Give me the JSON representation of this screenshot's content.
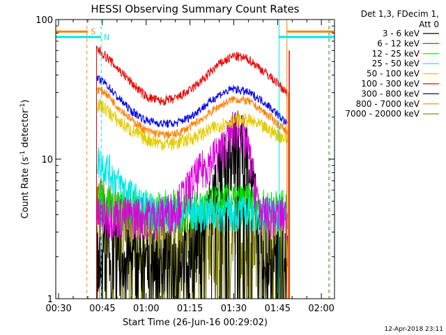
{
  "chart_data": {
    "type": "line",
    "title": "HESSI Observing Summary Count Rates",
    "xlabel": "Start Time (26-Jun-16 00:29:02)",
    "ylabel_main": "Count Rate (s",
    "ylabel_sup1": "-1",
    "ylabel_mid": " detector",
    "ylabel_sup2": "-1",
    "ylabel_end": ")",
    "y_scale": "log",
    "ylim": [
      1,
      100
    ],
    "xlim_minutes": [
      29.03,
      124.5
    ],
    "x_ticks": [
      {
        "t": 30,
        "label": "00:30"
      },
      {
        "t": 45,
        "label": "00:45"
      },
      {
        "t": 60,
        "label": "01:00"
      },
      {
        "t": 75,
        "label": "01:15"
      },
      {
        "t": 90,
        "label": "01:30"
      },
      {
        "t": 105,
        "label": "01:45"
      },
      {
        "t": 120,
        "label": "02:00"
      }
    ],
    "y_ticks": [
      {
        "v": 1,
        "label": "1"
      },
      {
        "v": 10,
        "label": "10"
      },
      {
        "v": 100,
        "label": "100"
      }
    ],
    "legend_header": [
      "Det 1,3, FDecim 1,",
      "Att 0"
    ],
    "series": [
      {
        "name": "3 - 6 keV",
        "color": "#000000",
        "x": [
          40,
          43,
          46,
          50,
          55,
          60,
          65,
          70,
          74,
          78,
          80,
          82,
          84,
          86,
          88,
          90,
          92,
          94,
          96,
          98,
          100,
          104,
          108
        ],
        "y": [
          0,
          2.5,
          2.5,
          2.2,
          2.0,
          2.0,
          2.0,
          2.0,
          2.2,
          2.6,
          3.5,
          5,
          7,
          9,
          11,
          14,
          15,
          13,
          8,
          4,
          2.2,
          2,
          2
        ]
      },
      {
        "name": "6 - 12 keV",
        "color": "#dd00dd",
        "x": [
          40,
          43,
          46,
          50,
          55,
          60,
          65,
          70,
          74,
          76,
          78,
          80,
          82,
          84,
          86,
          88,
          90,
          92,
          94,
          96,
          98,
          100,
          104,
          108
        ],
        "y": [
          0,
          4,
          4,
          4,
          4,
          4,
          4,
          4.5,
          6,
          7,
          8,
          9,
          10,
          11,
          12,
          14,
          17,
          17,
          14,
          9,
          5,
          4,
          4,
          4
        ]
      },
      {
        "name": "12 - 25 keV",
        "color": "#00dd00",
        "x": [
          40,
          43,
          46,
          50,
          55,
          60,
          65,
          70,
          75,
          80,
          85,
          90,
          95,
          100,
          105,
          108
        ],
        "y": [
          0,
          5,
          5,
          4.5,
          4.5,
          4.5,
          4.5,
          4.5,
          4.5,
          4.5,
          5,
          5,
          5,
          4.5,
          4.5,
          4.5
        ]
      },
      {
        "name": "25 - 50 keV",
        "color": "#00e5e5",
        "x": [
          40,
          43,
          46,
          50,
          55,
          60,
          65,
          70,
          75,
          80,
          85,
          90,
          95,
          100,
          105,
          108
        ],
        "y": [
          0,
          10,
          9,
          7,
          5.5,
          4.5,
          4.2,
          4.2,
          4.2,
          4.2,
          4.2,
          4.2,
          4.2,
          4.2,
          4.2,
          4.2
        ]
      },
      {
        "name": "50 - 100 keV",
        "color": "#e5cc00",
        "x": [
          40,
          43,
          46,
          50,
          55,
          60,
          65,
          70,
          75,
          80,
          85,
          90,
          95,
          100,
          105,
          108
        ],
        "y": [
          0,
          25,
          23,
          19,
          16,
          14,
          13,
          13,
          14,
          15.5,
          17.5,
          19,
          19,
          17,
          15,
          14
        ]
      },
      {
        "name": "100 - 300 keV",
        "color": "#ee0000",
        "x": [
          40,
          43,
          46,
          50,
          55,
          60,
          65,
          70,
          75,
          80,
          85,
          90,
          95,
          100,
          105,
          108
        ],
        "y": [
          0,
          62,
          55,
          45,
          35,
          28,
          26,
          27,
          31,
          38,
          48,
          55,
          52,
          43,
          35,
          30
        ]
      },
      {
        "name": "300 - 800 keV",
        "color": "#0000ee",
        "x": [
          40,
          43,
          46,
          50,
          55,
          60,
          65,
          70,
          75,
          80,
          85,
          90,
          95,
          100,
          105,
          108
        ],
        "y": [
          0,
          38,
          35,
          28,
          22,
          19,
          18,
          18,
          20,
          24,
          29,
          32,
          30,
          26,
          21,
          18
        ]
      },
      {
        "name": "800 - 7000 keV",
        "color": "#ff8000",
        "x": [
          40,
          43,
          46,
          50,
          55,
          60,
          65,
          70,
          75,
          80,
          85,
          90,
          95,
          100,
          105,
          108
        ],
        "y": [
          0,
          32,
          30,
          24,
          19,
          16,
          15,
          15,
          17,
          20,
          24,
          27,
          26,
          22,
          18,
          16
        ]
      },
      {
        "name": "7000 - 20000 keV",
        "color": "#808000",
        "x": [
          40,
          43,
          46,
          50,
          55,
          60,
          65,
          70,
          75,
          80,
          85,
          90,
          95,
          100,
          105,
          108
        ],
        "y": [
          0,
          5,
          4.5,
          4,
          3.5,
          3,
          3,
          3,
          3,
          3,
          3,
          3,
          3,
          3,
          3,
          3
        ]
      }
    ],
    "annotations": [
      {
        "label": "S",
        "color": "#ff8000"
      },
      {
        "label": "N",
        "color": "#00e5e5"
      }
    ],
    "footer_date": "12-Apr-2018 23:11"
  }
}
